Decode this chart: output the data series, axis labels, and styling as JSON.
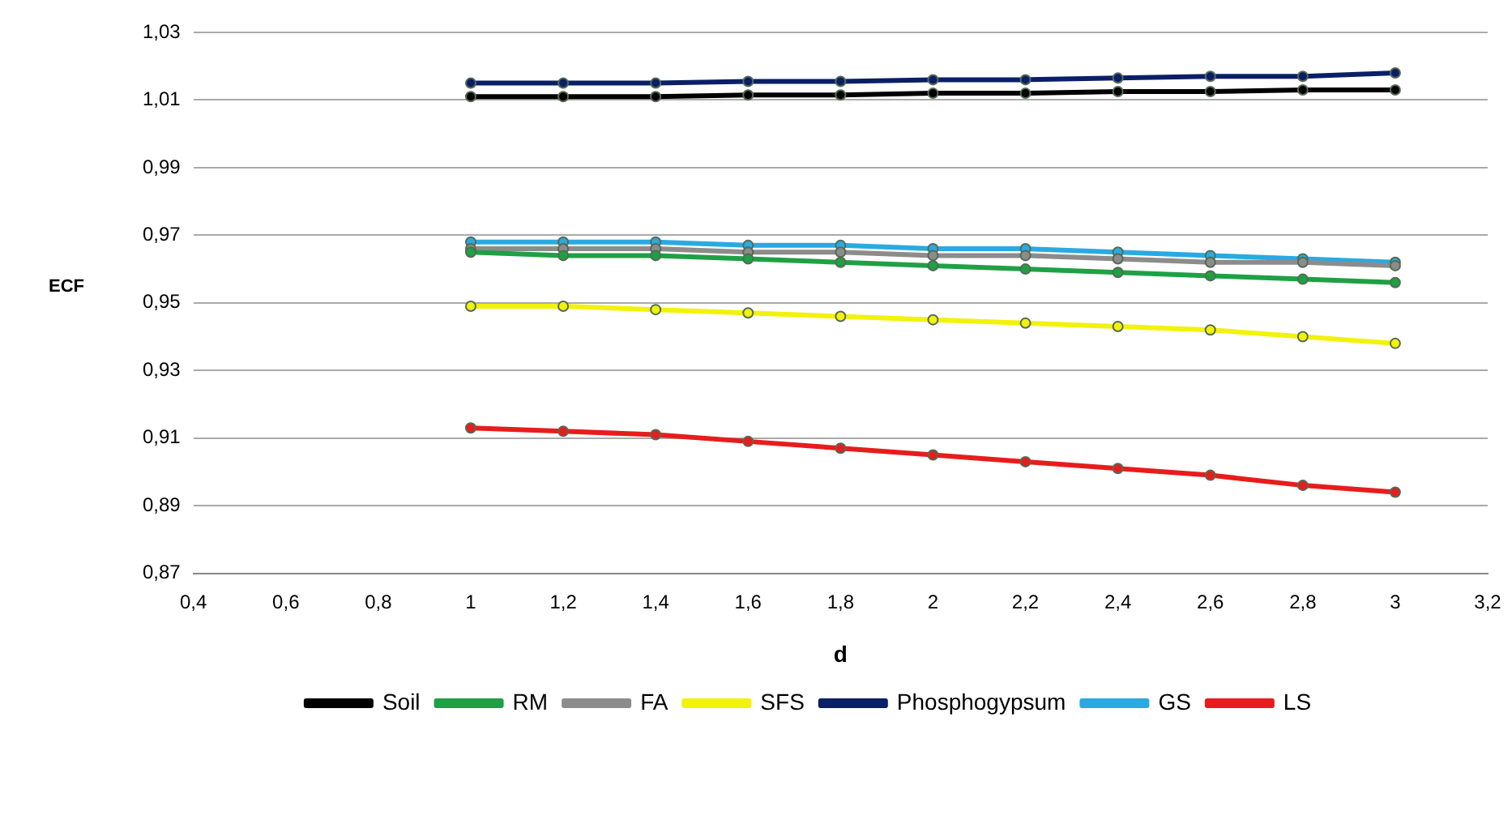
{
  "chart_data": {
    "type": "line",
    "xlabel": "d",
    "ylabel": "ECF",
    "x": [
      1,
      1.2,
      1.4,
      1.6,
      1.8,
      2,
      2.2,
      2.4,
      2.6,
      2.8,
      3
    ],
    "series": [
      {
        "name": "Soil",
        "color": "#000000",
        "values": [
          1.011,
          1.011,
          1.011,
          1.0115,
          1.0115,
          1.012,
          1.012,
          1.0125,
          1.0125,
          1.013,
          1.013
        ]
      },
      {
        "name": "RM",
        "color": "#1fa045",
        "values": [
          0.965,
          0.964,
          0.964,
          0.963,
          0.962,
          0.961,
          0.96,
          0.959,
          0.958,
          0.957,
          0.956
        ]
      },
      {
        "name": "FA",
        "color": "#8c8c8c",
        "values": [
          0.966,
          0.966,
          0.966,
          0.965,
          0.965,
          0.964,
          0.964,
          0.963,
          0.962,
          0.962,
          0.961
        ]
      },
      {
        "name": "SFS",
        "color": "#f2f20a",
        "values": [
          0.949,
          0.949,
          0.948,
          0.947,
          0.946,
          0.945,
          0.944,
          0.943,
          0.942,
          0.94,
          0.938
        ]
      },
      {
        "name": "Phosphogypsum",
        "color": "#0a1f66",
        "values": [
          1.015,
          1.015,
          1.015,
          1.0155,
          1.0155,
          1.016,
          1.016,
          1.0165,
          1.017,
          1.017,
          1.018
        ]
      },
      {
        "name": "GS",
        "color": "#29aae1",
        "values": [
          0.968,
          0.968,
          0.968,
          0.967,
          0.967,
          0.966,
          0.966,
          0.965,
          0.964,
          0.963,
          0.962
        ]
      },
      {
        "name": "LS",
        "color": "#e81c1c",
        "values": [
          0.913,
          0.912,
          0.911,
          0.909,
          0.907,
          0.905,
          0.903,
          0.901,
          0.899,
          0.896,
          0.894
        ]
      }
    ],
    "xlim": [
      0.4,
      3.2
    ],
    "xticks": [
      {
        "value": 0.4,
        "label": "0,4"
      },
      {
        "value": 0.6,
        "label": "0,6"
      },
      {
        "value": 0.8,
        "label": "0,8"
      },
      {
        "value": 1,
        "label": "1"
      },
      {
        "value": 1.2,
        "label": "1,2"
      },
      {
        "value": 1.4,
        "label": "1,4"
      },
      {
        "value": 1.6,
        "label": "1,6"
      },
      {
        "value": 1.8,
        "label": "1,8"
      },
      {
        "value": 2,
        "label": "2"
      },
      {
        "value": 2.2,
        "label": "2,2"
      },
      {
        "value": 2.4,
        "label": "2,4"
      },
      {
        "value": 2.6,
        "label": "2,6"
      },
      {
        "value": 2.8,
        "label": "2,8"
      },
      {
        "value": 3,
        "label": "3"
      },
      {
        "value": 3.2,
        "label": "3,2"
      }
    ],
    "ylim": [
      0.87,
      1.03
    ],
    "yticks": [
      {
        "value": 0.87,
        "label": "0,87"
      },
      {
        "value": 0.89,
        "label": "0,89"
      },
      {
        "value": 0.91,
        "label": "0,91"
      },
      {
        "value": 0.93,
        "label": "0,93"
      },
      {
        "value": 0.95,
        "label": "0,95"
      },
      {
        "value": 0.97,
        "label": "0,97"
      },
      {
        "value": 0.99,
        "label": "0,99"
      },
      {
        "value": 1.01,
        "label": "1,01"
      },
      {
        "value": 1.03,
        "label": "1,03"
      }
    ],
    "grid": "y",
    "legend": "bottom",
    "marker": "circle",
    "line_style": "solid"
  }
}
